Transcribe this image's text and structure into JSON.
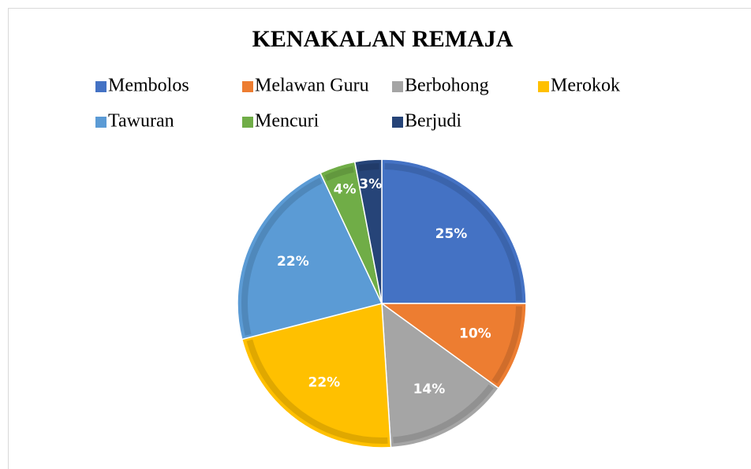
{
  "chart_data": {
    "type": "pie",
    "title": "KENAKALAN REMAJA",
    "categories": [
      "Membolos",
      "Melawan Guru",
      "Berbohong",
      "Merokok",
      "Tawuran",
      "Mencuri",
      "Berjudi"
    ],
    "values": [
      25,
      10,
      14,
      22,
      22,
      4,
      3
    ],
    "value_labels": [
      "25%",
      "10%",
      "14%",
      "22%",
      "22%",
      "4%",
      "3%"
    ],
    "colors": [
      "#4472c4",
      "#ed7d31",
      "#a5a5a5",
      "#ffc000",
      "#5b9bd5",
      "#70ad47",
      "#264478"
    ],
    "legend": "top"
  }
}
